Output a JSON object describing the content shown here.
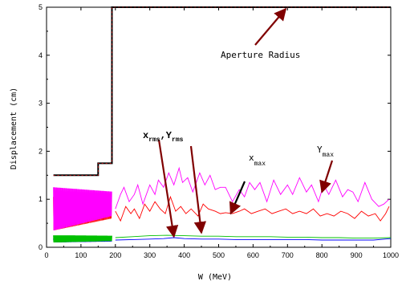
{
  "chart_data": {
    "type": "line",
    "xlabel": "W (MeV)",
    "ylabel": "Displacement (cm)",
    "xlim": [
      0,
      1000
    ],
    "ylim": [
      0,
      5
    ],
    "xticks": [
      "0",
      "100",
      "200",
      "300",
      "400",
      "500",
      "600",
      "700",
      "800",
      "900",
      "1000"
    ],
    "yticks": [
      "0",
      "1",
      "2",
      "3",
      "4",
      "5"
    ],
    "grid": false,
    "series": [
      {
        "name": "Aperture Radius",
        "color": "#000000",
        "x": [
          20,
          150,
          150,
          190,
          190,
          1000
        ],
        "y": [
          1.5,
          1.5,
          1.75,
          1.75,
          5.0,
          5.0
        ]
      },
      {
        "name": "Ymax",
        "color": "#ff00ff",
        "x": [
          200,
          215,
          225,
          240,
          255,
          265,
          280,
          300,
          315,
          325,
          340,
          355,
          370,
          385,
          395,
          410,
          425,
          445,
          460,
          475,
          490,
          505,
          520,
          540,
          560,
          575,
          590,
          605,
          620,
          640,
          660,
          680,
          700,
          715,
          735,
          755,
          770,
          790,
          805,
          820,
          840,
          860,
          875,
          890,
          905,
          925,
          945,
          965,
          980,
          995
        ],
        "y": [
          0.8,
          1.1,
          1.25,
          0.95,
          1.1,
          1.3,
          0.9,
          1.3,
          1.1,
          1.4,
          1.25,
          1.55,
          1.3,
          1.65,
          1.35,
          1.45,
          1.15,
          1.55,
          1.3,
          1.5,
          1.2,
          1.25,
          1.25,
          0.95,
          1.2,
          1.05,
          1.35,
          1.2,
          1.35,
          0.95,
          1.4,
          1.1,
          1.3,
          1.1,
          1.45,
          1.15,
          1.3,
          0.95,
          1.3,
          1.1,
          1.4,
          1.05,
          1.2,
          1.15,
          0.95,
          1.35,
          1.0,
          0.85,
          0.9,
          1.0
        ]
      },
      {
        "name": "Xmax",
        "color": "#ff0000",
        "x": [
          200,
          215,
          230,
          245,
          255,
          270,
          285,
          300,
          315,
          330,
          345,
          360,
          375,
          390,
          405,
          420,
          440,
          455,
          470,
          490,
          505,
          520,
          540,
          560,
          575,
          595,
          615,
          635,
          655,
          675,
          695,
          715,
          735,
          755,
          775,
          795,
          815,
          835,
          855,
          875,
          895,
          915,
          935,
          955,
          970,
          985,
          995
        ],
        "y": [
          0.75,
          0.55,
          0.85,
          0.7,
          0.8,
          0.6,
          0.9,
          0.75,
          0.95,
          0.8,
          0.7,
          1.05,
          0.75,
          0.85,
          0.7,
          0.8,
          0.65,
          0.9,
          0.8,
          0.75,
          0.7,
          0.72,
          0.7,
          0.75,
          0.8,
          0.7,
          0.75,
          0.8,
          0.7,
          0.75,
          0.8,
          0.7,
          0.75,
          0.7,
          0.8,
          0.65,
          0.7,
          0.65,
          0.75,
          0.7,
          0.6,
          0.75,
          0.65,
          0.7,
          0.55,
          0.7,
          0.85
        ]
      },
      {
        "name": "Xrms",
        "color": "#00c000",
        "x": [
          200,
          250,
          300,
          350,
          400,
          450,
          500,
          550,
          600,
          650,
          700,
          750,
          800,
          850,
          900,
          950,
          1000
        ],
        "y": [
          0.2,
          0.22,
          0.24,
          0.25,
          0.24,
          0.23,
          0.23,
          0.22,
          0.22,
          0.22,
          0.21,
          0.21,
          0.2,
          0.2,
          0.19,
          0.19,
          0.2
        ]
      },
      {
        "name": "Yrms",
        "color": "#0000ff",
        "x": [
          200,
          250,
          300,
          340,
          370,
          400,
          450,
          500,
          550,
          600,
          650,
          700,
          750,
          800,
          850,
          900,
          950,
          1000
        ],
        "y": [
          0.15,
          0.16,
          0.17,
          0.18,
          0.2,
          0.18,
          0.17,
          0.17,
          0.16,
          0.16,
          0.16,
          0.16,
          0.16,
          0.15,
          0.15,
          0.15,
          0.15,
          0.18
        ]
      }
    ],
    "low_energy_band": {
      "x_range": [
        20,
        190
      ],
      "ymax_range": [
        0.35,
        1.25
      ],
      "xmax_range": [
        0.35,
        1.05
      ],
      "rms_green_range": [
        0.1,
        0.25
      ],
      "rms_blue_range": [
        0.1,
        0.18
      ]
    },
    "annotations": {
      "aperture": {
        "text": "Aperture Radius"
      },
      "rms_main": "x",
      "rms_sub": "rms",
      "rms_sep": ",Y",
      "rms_sub2": "rms",
      "xmax_main": "x",
      "xmax_sub": "max",
      "ymax_main": "Y",
      "ymax_sub": "max"
    },
    "arrow_color": "#800000"
  }
}
